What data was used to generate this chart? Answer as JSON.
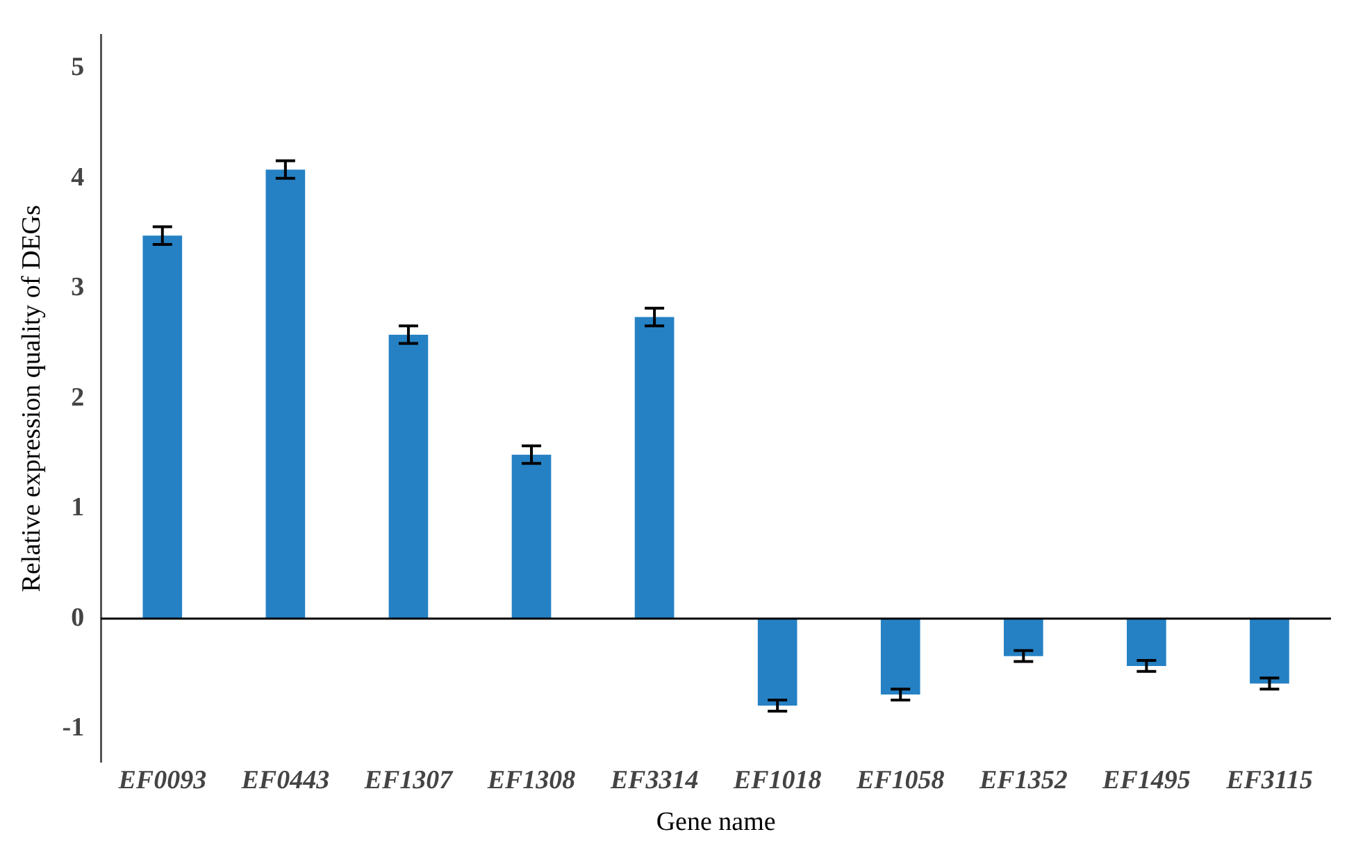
{
  "chart_data": {
    "type": "bar",
    "xlabel": "Gene name",
    "ylabel": "Relative expression quality of DEGs",
    "categories": [
      "EF0093",
      "EF0443",
      "EF1307",
      "EF1308",
      "EF3314",
      "EF1018",
      "EF1058",
      "EF1352",
      "EF1495",
      "EF3115"
    ],
    "values": [
      3.48,
      4.08,
      2.58,
      1.49,
      2.74,
      -0.79,
      -0.69,
      -0.34,
      -0.43,
      -0.59
    ],
    "errors": [
      0.08,
      0.08,
      0.08,
      0.08,
      0.08,
      0.05,
      0.05,
      0.05,
      0.05,
      0.05
    ],
    "color": "#2581c4",
    "ylim": [
      -1.3,
      5.3
    ],
    "yticks": [
      -1,
      0,
      1,
      2,
      3,
      4,
      5
    ],
    "ref_lines": [
      {
        "axis": "y",
        "value": 0,
        "color": "#000000"
      }
    ],
    "grid": false,
    "legend": false
  }
}
